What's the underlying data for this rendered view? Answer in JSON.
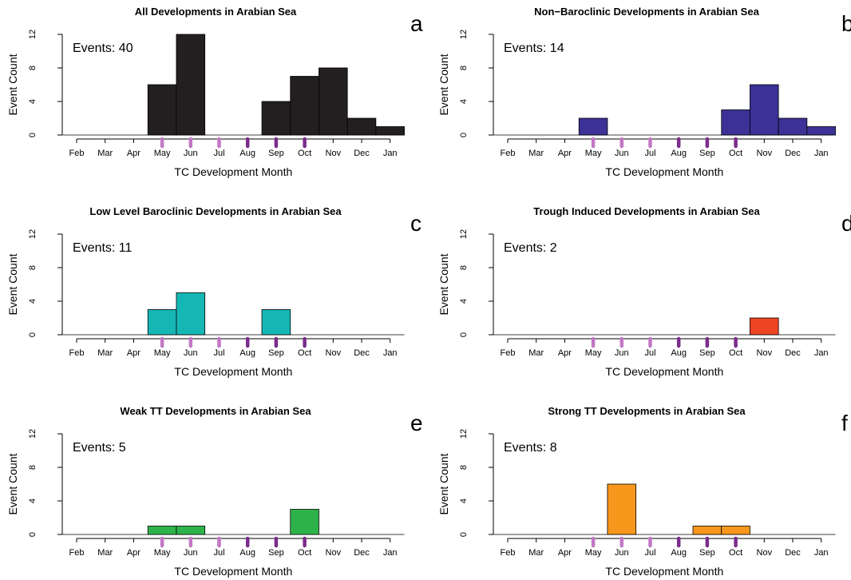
{
  "chart_data": [
    {
      "panel": "a",
      "type": "bar",
      "title": "All Developments in Arabian Sea",
      "events_label": "Events: 40",
      "xlabel": "TC Development Month",
      "ylabel": "Event Count",
      "ylim": [
        0,
        12
      ],
      "yticks": [
        "0",
        "4",
        "8",
        "12"
      ],
      "categories": [
        "Feb",
        "Mar",
        "Apr",
        "May",
        "Jun",
        "Jul",
        "Aug",
        "Sep",
        "Oct",
        "Nov",
        "Dec",
        "Jan"
      ],
      "values": [
        0,
        0,
        0,
        6,
        12,
        0,
        0,
        4,
        7,
        8,
        2,
        1
      ],
      "color": "#231f20"
    },
    {
      "panel": "b",
      "type": "bar",
      "title": "Non−Baroclinic Developments in Arabian Sea",
      "events_label": "Events: 14",
      "xlabel": "TC Development Month",
      "ylabel": "Event Count",
      "ylim": [
        0,
        12
      ],
      "yticks": [
        "0",
        "4",
        "8",
        "12"
      ],
      "categories": [
        "Feb",
        "Mar",
        "Apr",
        "May",
        "Jun",
        "Jul",
        "Aug",
        "Sep",
        "Oct",
        "Nov",
        "Dec",
        "Jan"
      ],
      "values": [
        0,
        0,
        0,
        2,
        0,
        0,
        0,
        0,
        3,
        6,
        2,
        1
      ],
      "color": "#3b3196"
    },
    {
      "panel": "c",
      "type": "bar",
      "title": "Low Level Baroclinic Developments in Arabian Sea",
      "events_label": "Events: 11",
      "xlabel": "TC Development Month",
      "ylabel": "Event Count",
      "ylim": [
        0,
        12
      ],
      "yticks": [
        "0",
        "4",
        "8",
        "12"
      ],
      "categories": [
        "Feb",
        "Mar",
        "Apr",
        "May",
        "Jun",
        "Jul",
        "Aug",
        "Sep",
        "Oct",
        "Nov",
        "Dec",
        "Jan"
      ],
      "values": [
        0,
        0,
        0,
        3,
        5,
        0,
        0,
        3,
        0,
        0,
        0,
        0
      ],
      "color": "#15b7b4"
    },
    {
      "panel": "d",
      "type": "bar",
      "title": "Trough Induced Developments in Arabian Sea",
      "events_label": "Events: 2",
      "xlabel": "TC Development Month",
      "ylabel": "Event Count",
      "ylim": [
        0,
        12
      ],
      "yticks": [
        "0",
        "4",
        "8",
        "12"
      ],
      "categories": [
        "Feb",
        "Mar",
        "Apr",
        "May",
        "Jun",
        "Jul",
        "Aug",
        "Sep",
        "Oct",
        "Nov",
        "Dec",
        "Jan"
      ],
      "values": [
        0,
        0,
        0,
        0,
        0,
        0,
        0,
        0,
        0,
        2,
        0,
        0
      ],
      "color": "#ee4423"
    },
    {
      "panel": "e",
      "type": "bar",
      "title": "Weak TT Developments in Arabian Sea",
      "events_label": "Events: 5",
      "xlabel": "TC Development Month",
      "ylabel": "Event Count",
      "ylim": [
        0,
        12
      ],
      "yticks": [
        "0",
        "4",
        "8",
        "12"
      ],
      "categories": [
        "Feb",
        "Mar",
        "Apr",
        "May",
        "Jun",
        "Jul",
        "Aug",
        "Sep",
        "Oct",
        "Nov",
        "Dec",
        "Jan"
      ],
      "values": [
        0,
        0,
        0,
        1,
        1,
        0,
        0,
        0,
        3,
        0,
        0,
        0
      ],
      "color": "#2db34a"
    },
    {
      "panel": "f",
      "type": "bar",
      "title": "Strong TT Developments in Arabian Sea",
      "events_label": "Events: 8",
      "xlabel": "TC Development Month",
      "ylabel": "Event Count",
      "ylim": [
        0,
        12
      ],
      "yticks": [
        "0",
        "4",
        "8",
        "12"
      ],
      "categories": [
        "Feb",
        "Mar",
        "Apr",
        "May",
        "Jun",
        "Jul",
        "Aug",
        "Sep",
        "Oct",
        "Nov",
        "Dec",
        "Jan"
      ],
      "values": [
        0,
        0,
        0,
        0,
        6,
        0,
        0,
        1,
        1,
        0,
        0,
        0
      ],
      "color": "#f7971c"
    }
  ],
  "month_markers": {
    "light_months": [
      "May",
      "Jun",
      "Jul"
    ],
    "dark_months": [
      "Aug",
      "Sep",
      "Oct"
    ],
    "light_color": "#c277c4",
    "dark_color": "#7b2c8c"
  }
}
